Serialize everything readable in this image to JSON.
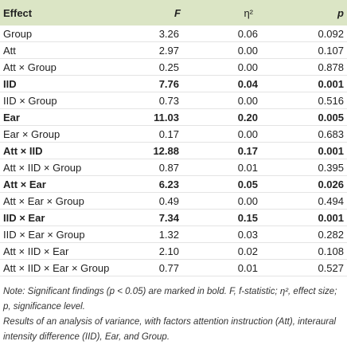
{
  "table": {
    "header": [
      "Effect",
      "F",
      "η²",
      "p"
    ],
    "rows": [
      [
        "Group",
        "3.26",
        "0.06",
        "0.092"
      ],
      [
        "Att",
        "2.97",
        "0.00",
        "0.107"
      ],
      [
        "Att × Group",
        "0.25",
        "0.00",
        "0.878"
      ],
      [
        "IID",
        "7.76",
        "0.04",
        "0.001"
      ],
      [
        "IID × Group",
        "0.73",
        "0.00",
        "0.516"
      ],
      [
        "Ear",
        "11.03",
        "0.20",
        "0.005"
      ],
      [
        "Ear × Group",
        "0.17",
        "0.00",
        "0.683"
      ],
      [
        "Att × IID",
        "12.88",
        "0.17",
        "0.001"
      ],
      [
        "Att × IID × Group",
        "0.87",
        "0.01",
        "0.395"
      ],
      [
        "Att × Ear",
        "6.23",
        "0.05",
        "0.026"
      ],
      [
        "Att × Ear × Group",
        "0.49",
        "0.00",
        "0.494"
      ],
      [
        "IID × Ear",
        "7.34",
        "0.15",
        "0.001"
      ],
      [
        "IID × Ear × Group",
        "1.32",
        "0.03",
        "0.282"
      ],
      [
        "Att × IID × Ear",
        "2.10",
        "0.02",
        "0.108"
      ],
      [
        "Att × IID × Ear × Group",
        "0.77",
        "0.01",
        "0.527"
      ]
    ],
    "notes": [
      "Note: Significant findings (p < 0.05) are marked in bold. F, f-statistic; η², effect size; p, significance level.",
      "Results of an analysis of variance, with factors attention instruction (Att), interaural intensity difference (IID), Ear, and Group."
    ]
  }
}
